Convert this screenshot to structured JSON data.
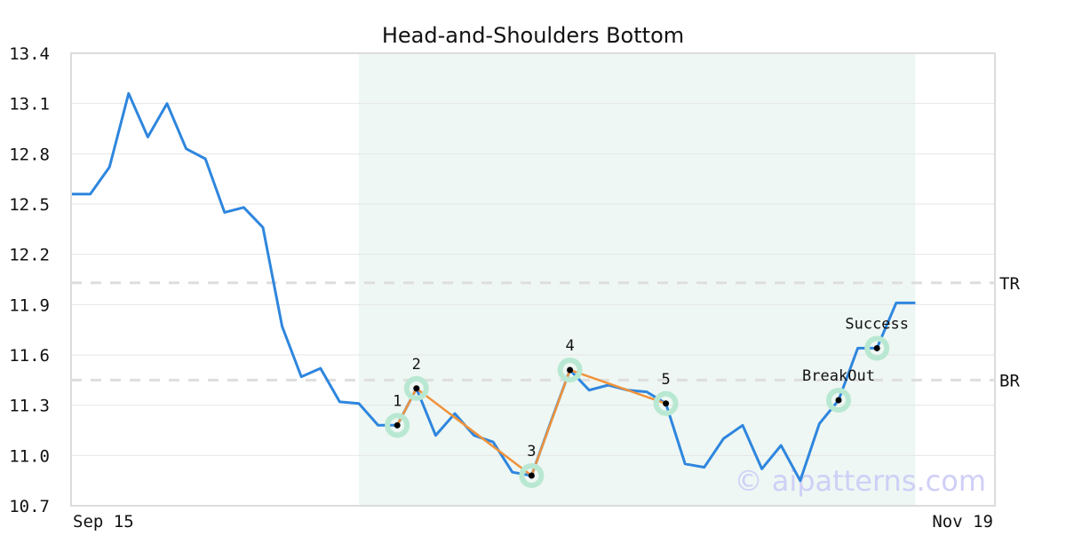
{
  "chart_data": {
    "type": "line",
    "title": "Head-and-Shoulders Bottom",
    "xlabel": "",
    "ylabel": "",
    "x_tick_labels": [
      "Sep 15",
      "Nov 19"
    ],
    "y_ticks": [
      "10.7",
      "11.0",
      "11.3",
      "11.6",
      "11.9",
      "12.2",
      "12.5",
      "12.8",
      "13.1",
      "13.4"
    ],
    "ylim": [
      10.7,
      13.4
    ],
    "grid": "horizontal",
    "series": [
      {
        "color": "#2e86de",
        "values": [
          12.56,
          12.56,
          12.72,
          13.16,
          12.9,
          13.1,
          12.83,
          12.77,
          12.45,
          12.48,
          12.36,
          11.77,
          11.47,
          11.52,
          11.32,
          11.31,
          11.18,
          11.18,
          11.4,
          11.12,
          11.25,
          11.12,
          11.08,
          10.9,
          10.88,
          11.2,
          11.51,
          11.39,
          11.42,
          11.39,
          11.38,
          11.31,
          10.95,
          10.93,
          11.1,
          11.18,
          10.92,
          11.06,
          10.85,
          11.19,
          11.33,
          11.64,
          11.64,
          11.91,
          11.91
        ]
      }
    ],
    "pattern_region": {
      "start_index": 15,
      "end_index": 44,
      "color": "#eef7f3"
    },
    "pattern_points": [
      {
        "label": "1",
        "index": 17,
        "value": 11.18
      },
      {
        "label": "2",
        "index": 18,
        "value": 11.4
      },
      {
        "label": "3",
        "index": 24,
        "value": 10.88
      },
      {
        "label": "4",
        "index": 26,
        "value": 11.51
      },
      {
        "label": "5",
        "index": 31,
        "value": 11.31
      },
      {
        "label": "BreakOut",
        "index": 40,
        "value": 11.33
      },
      {
        "label": "Success",
        "index": 42,
        "value": 11.64
      }
    ],
    "pattern_line_color": "#f0923a",
    "reference_lines": [
      {
        "label": "TR",
        "value": 12.03
      },
      {
        "label": "BR",
        "value": 11.45
      }
    ],
    "watermark": "© aipatterns.com"
  }
}
